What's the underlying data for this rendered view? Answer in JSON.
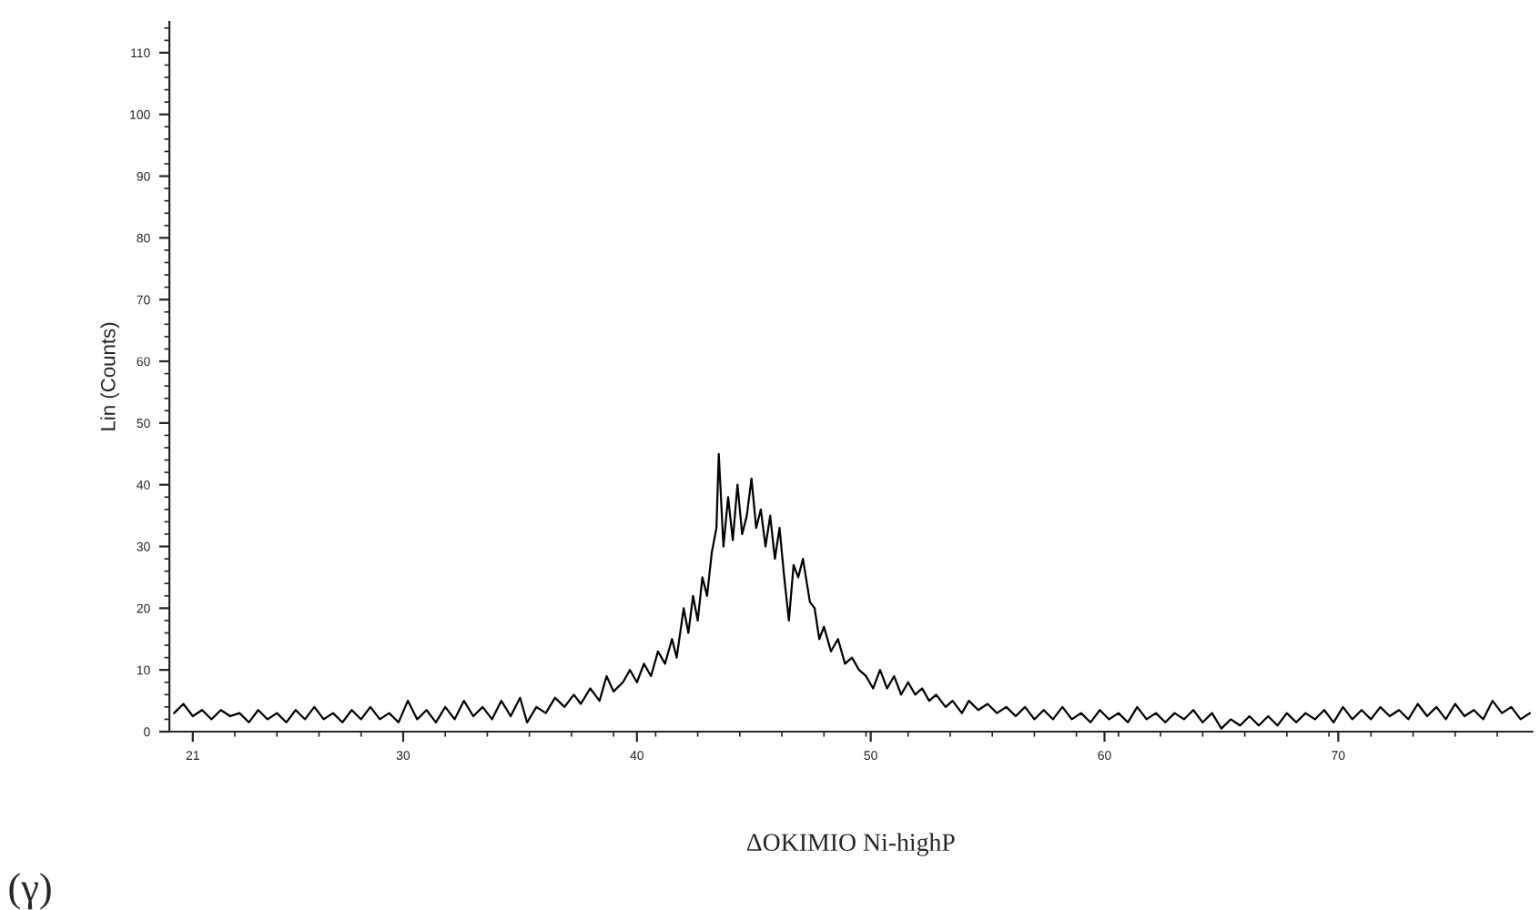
{
  "chart_data": {
    "type": "line",
    "xlabel": "ΔOKIMIO Ni-highP",
    "ylabel": "Lin (Counts)",
    "annotations": [
      "(γ)"
    ],
    "xlim": [
      20,
      78.3
    ],
    "ylim": [
      0,
      115
    ],
    "xticks": [
      21,
      30,
      40,
      50,
      60,
      70
    ],
    "yticks": [
      0,
      10,
      20,
      30,
      40,
      50,
      60,
      70,
      80,
      90,
      100,
      110
    ],
    "grid": false,
    "legend": false,
    "marker": "none",
    "line_style": "solid",
    "series": [
      {
        "color": "#000000",
        "x": [
          20.2,
          20.6,
          21.0,
          21.4,
          21.8,
          22.2,
          22.6,
          23.0,
          23.4,
          23.8,
          24.2,
          24.6,
          25.0,
          25.4,
          25.8,
          26.2,
          26.6,
          27.0,
          27.4,
          27.8,
          28.2,
          28.6,
          29.0,
          29.4,
          29.8,
          30.2,
          30.6,
          31.0,
          31.4,
          31.8,
          32.2,
          32.6,
          33.0,
          33.4,
          33.8,
          34.2,
          34.6,
          35.0,
          35.3,
          35.7,
          36.1,
          36.5,
          36.9,
          37.3,
          37.6,
          38.0,
          38.4,
          38.7,
          39.0,
          39.4,
          39.7,
          40.0,
          40.3,
          40.6,
          40.9,
          41.2,
          41.5,
          41.7,
          42.0,
          42.2,
          42.4,
          42.6,
          42.8,
          43.0,
          43.2,
          43.4,
          43.5,
          43.7,
          43.9,
          44.1,
          44.3,
          44.5,
          44.7,
          44.9,
          45.1,
          45.3,
          45.5,
          45.7,
          45.9,
          46.1,
          46.3,
          46.5,
          46.7,
          46.9,
          47.1,
          47.4,
          47.6,
          47.8,
          48.0,
          48.3,
          48.6,
          48.9,
          49.2,
          49.5,
          49.8,
          50.1,
          50.4,
          50.7,
          51.0,
          51.3,
          51.6,
          51.9,
          52.2,
          52.5,
          52.8,
          53.2,
          53.5,
          53.9,
          54.2,
          54.6,
          55.0,
          55.4,
          55.8,
          56.2,
          56.6,
          57.0,
          57.4,
          57.8,
          58.2,
          58.6,
          59.0,
          59.4,
          59.8,
          60.2,
          60.6,
          61.0,
          61.4,
          61.8,
          62.2,
          62.6,
          63.0,
          63.4,
          63.8,
          64.2,
          64.6,
          65.0,
          65.4,
          65.8,
          66.2,
          66.6,
          67.0,
          67.4,
          67.8,
          68.2,
          68.6,
          69.0,
          69.4,
          69.8,
          70.2,
          70.6,
          71.0,
          71.4,
          71.8,
          72.2,
          72.6,
          73.0,
          73.4,
          73.8,
          74.2,
          74.6,
          75.0,
          75.4,
          75.8,
          76.2,
          76.6,
          77.0,
          77.4,
          77.8,
          78.2
        ],
        "values": [
          3,
          4.5,
          2.5,
          3.5,
          2,
          3.5,
          2.5,
          3,
          1.5,
          3.5,
          2,
          3,
          1.5,
          3.5,
          2,
          4,
          2,
          3,
          1.5,
          3.5,
          2,
          4,
          2,
          3,
          1.5,
          5,
          2,
          3.5,
          1.5,
          4,
          2,
          5,
          2.5,
          4,
          2,
          5,
          2.5,
          5.5,
          1.5,
          4,
          3,
          5.5,
          4,
          6,
          4.5,
          7,
          5,
          9,
          6.5,
          8,
          10,
          8,
          11,
          9,
          13,
          11,
          15,
          12,
          20,
          16,
          22,
          18,
          25,
          22,
          29,
          33,
          45,
          30,
          38,
          31,
          40,
          32,
          35,
          41,
          33,
          36,
          30,
          35,
          28,
          33,
          25,
          18,
          27,
          25,
          28,
          21,
          20,
          15,
          17,
          13,
          15,
          11,
          12,
          10,
          9,
          7,
          10,
          7,
          9,
          6,
          8,
          6,
          7,
          5,
          6,
          4,
          5,
          3,
          5,
          3.5,
          4.5,
          3,
          4,
          2.5,
          4,
          2,
          3.5,
          2,
          4,
          2,
          3,
          1.5,
          3.5,
          2,
          3,
          1.5,
          4,
          2,
          3,
          1.5,
          3,
          2,
          3.5,
          1.5,
          3,
          0.5,
          2,
          1,
          2.5,
          1,
          2.5,
          1,
          3,
          1.5,
          3,
          2,
          3.5,
          1.5,
          4,
          2,
          3.5,
          2,
          4,
          2.5,
          3.5,
          2,
          4.5,
          2.5,
          4,
          2,
          4.5,
          2.5,
          3.5,
          2,
          5,
          3,
          4,
          2,
          3
        ]
      }
    ]
  }
}
